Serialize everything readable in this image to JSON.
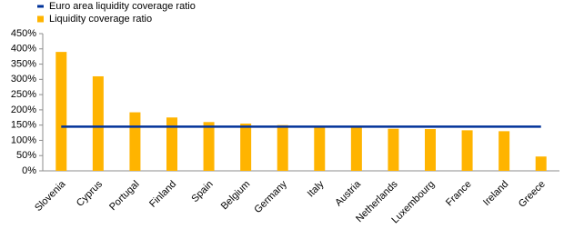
{
  "chart_data": {
    "type": "bar",
    "categories": [
      "Slovenia",
      "Cyprus",
      "Portugal",
      "Finland",
      "Spain",
      "Belgium",
      "Germany",
      "Italy",
      "Austria",
      "Netherlands",
      "Luxembourg",
      "France",
      "Ireland",
      "Greece"
    ],
    "series": [
      {
        "name": "Euro area liquidity coverage ratio",
        "type": "line",
        "color": "#003299",
        "values": [
          145,
          145,
          145,
          145,
          145,
          145,
          145,
          145,
          145,
          145,
          145,
          145,
          145,
          145
        ]
      },
      {
        "name": "Liquidity coverage ratio",
        "type": "bar",
        "color": "#ffb400",
        "values": [
          390,
          310,
          192,
          175,
          160,
          155,
          150,
          147,
          145,
          138,
          137,
          133,
          130,
          47
        ]
      }
    ],
    "ylim": [
      0,
      450
    ],
    "yticks": [
      {
        "value": 0,
        "label": "0%"
      },
      {
        "value": 50,
        "label": "50%"
      },
      {
        "value": 100,
        "label": "100%"
      },
      {
        "value": 150,
        "label": "150%"
      },
      {
        "value": 200,
        "label": "200%"
      },
      {
        "value": 250,
        "label": "250%"
      },
      {
        "value": 300,
        "label": "300%"
      },
      {
        "value": 350,
        "label": "350%"
      },
      {
        "value": 400,
        "label": "400%"
      },
      {
        "value": 450,
        "label": "450%"
      }
    ],
    "grid": false,
    "legend": "top-left"
  }
}
